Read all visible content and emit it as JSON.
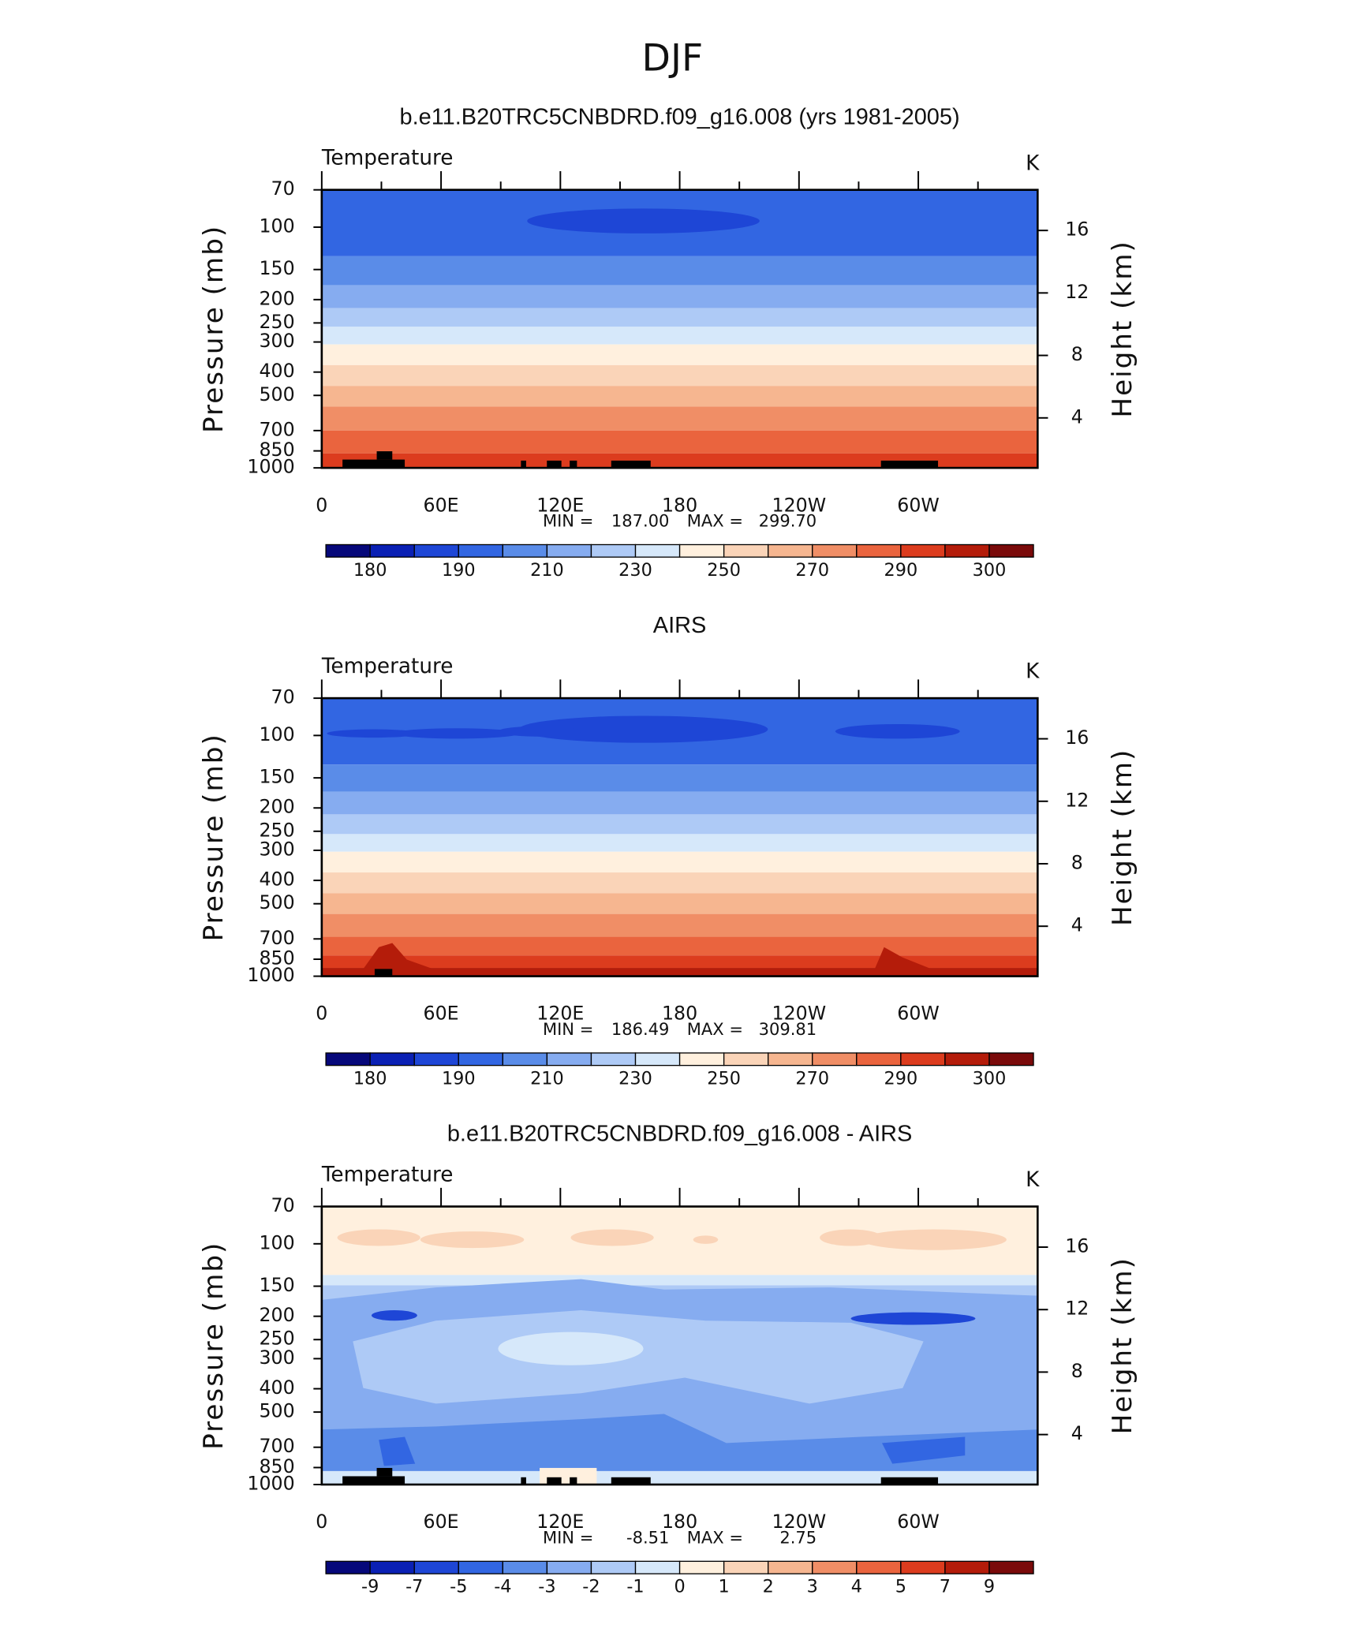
{
  "title": "DJF",
  "chart_data": [
    {
      "type": "contour",
      "title": "b.e11.B20TRC5CNBDRD.f09_g16.008 (yrs 1981-2005)",
      "subtitle": "Temperature",
      "units": "K",
      "xlim": [
        0,
        360
      ],
      "xticks": [
        0,
        {
          "value": 60,
          "label": "60E"
        },
        {
          "value": 120,
          "label": "120E"
        },
        180,
        {
          "value": 240,
          "label": "120W"
        },
        {
          "value": 300,
          "label": "60W"
        }
      ],
      "ylim": [
        1000,
        70
      ],
      "log_y": true,
      "yticks": [
        70,
        100,
        150,
        200,
        250,
        300,
        400,
        500,
        700,
        850,
        1000
      ],
      "ylabel": "Pressure  (mb)",
      "y2lim": [
        0.8,
        18.6
      ],
      "y2ticks": [
        4,
        8,
        12,
        16
      ],
      "y2label": "Height  (km)",
      "min_label": "MIN =",
      "min": {
        "value": 187,
        "label": "187.00"
      },
      "max_label": "MAX =",
      "max": {
        "value": 299.7,
        "label": "299.70"
      },
      "colorbar": {
        "colors": [
          "#06087a",
          "#0a20b4",
          "#1e46d6",
          "#3266e2",
          "#5a8ce8",
          "#86acf0",
          "#aecaf6",
          "#d6e8fa",
          "#fff0de",
          "#fad4b8",
          "#f6b690",
          "#f08e66",
          "#ea643e",
          "#dc3c1e",
          "#b41c0a",
          "#7a0a0a"
        ],
        "labels": [
          180,
          190,
          210,
          230,
          250,
          270,
          290,
          300
        ]
      }
    },
    {
      "type": "contour",
      "title": "AIRS",
      "subtitle": "Temperature",
      "units": "K",
      "xlim": [
        0,
        360
      ],
      "xticks": [
        0,
        {
          "value": 60,
          "label": "60E"
        },
        {
          "value": 120,
          "label": "120E"
        },
        180,
        {
          "value": 240,
          "label": "120W"
        },
        {
          "value": 300,
          "label": "60W"
        }
      ],
      "ylim": [
        1000,
        70
      ],
      "log_y": true,
      "yticks": [
        70,
        100,
        150,
        200,
        250,
        300,
        400,
        500,
        700,
        850,
        1000
      ],
      "ylabel": "Pressure  (mb)",
      "y2lim": [
        0.8,
        18.6
      ],
      "y2ticks": [
        4,
        8,
        12,
        16
      ],
      "y2label": "Height  (km)",
      "min_label": "MIN =",
      "min": {
        "value": 186.49,
        "label": "186.49"
      },
      "max_label": "MAX =",
      "max": {
        "value": 309.81,
        "label": "309.81"
      },
      "colorbar": {
        "colors": [
          "#06087a",
          "#0a20b4",
          "#1e46d6",
          "#3266e2",
          "#5a8ce8",
          "#86acf0",
          "#aecaf6",
          "#d6e8fa",
          "#fff0de",
          "#fad4b8",
          "#f6b690",
          "#f08e66",
          "#ea643e",
          "#dc3c1e",
          "#b41c0a",
          "#7a0a0a"
        ],
        "labels": [
          180,
          190,
          210,
          230,
          250,
          270,
          290,
          300
        ]
      }
    },
    {
      "type": "contour-diff",
      "title": "b.e11.B20TRC5CNBDRD.f09_g16.008 - AIRS",
      "subtitle": "Temperature",
      "units": "K",
      "xlim": [
        0,
        360
      ],
      "xticks": [
        0,
        {
          "value": 60,
          "label": "60E"
        },
        {
          "value": 120,
          "label": "120E"
        },
        180,
        {
          "value": 240,
          "label": "120W"
        },
        {
          "value": 300,
          "label": "60W"
        }
      ],
      "ylim": [
        1000,
        70
      ],
      "log_y": true,
      "yticks": [
        70,
        100,
        150,
        200,
        250,
        300,
        400,
        500,
        700,
        850,
        1000
      ],
      "ylabel": "Pressure  (mb)",
      "y2lim": [
        0.8,
        18.6
      ],
      "y2ticks": [
        4,
        8,
        12,
        16
      ],
      "y2label": "Height  (km)",
      "min_label": "MIN =",
      "min": {
        "value": -8.51,
        "label": "-8.51"
      },
      "max_label": "MAX =",
      "max": {
        "value": 2.75,
        "label": "2.75"
      },
      "colorbar": {
        "colors": [
          "#06087a",
          "#0a20b4",
          "#1e46d6",
          "#3266e2",
          "#5a8ce8",
          "#86acf0",
          "#aecaf6",
          "#d6e8fa",
          "#fff0de",
          "#fad4b8",
          "#f6b690",
          "#f08e66",
          "#ea643e",
          "#dc3c1e",
          "#b41c0a",
          "#7a0a0a"
        ],
        "labels": [
          -9,
          -7,
          -5,
          -4,
          -3,
          -2,
          -1,
          0,
          1,
          2,
          3,
          4,
          5,
          7,
          9
        ]
      }
    }
  ]
}
